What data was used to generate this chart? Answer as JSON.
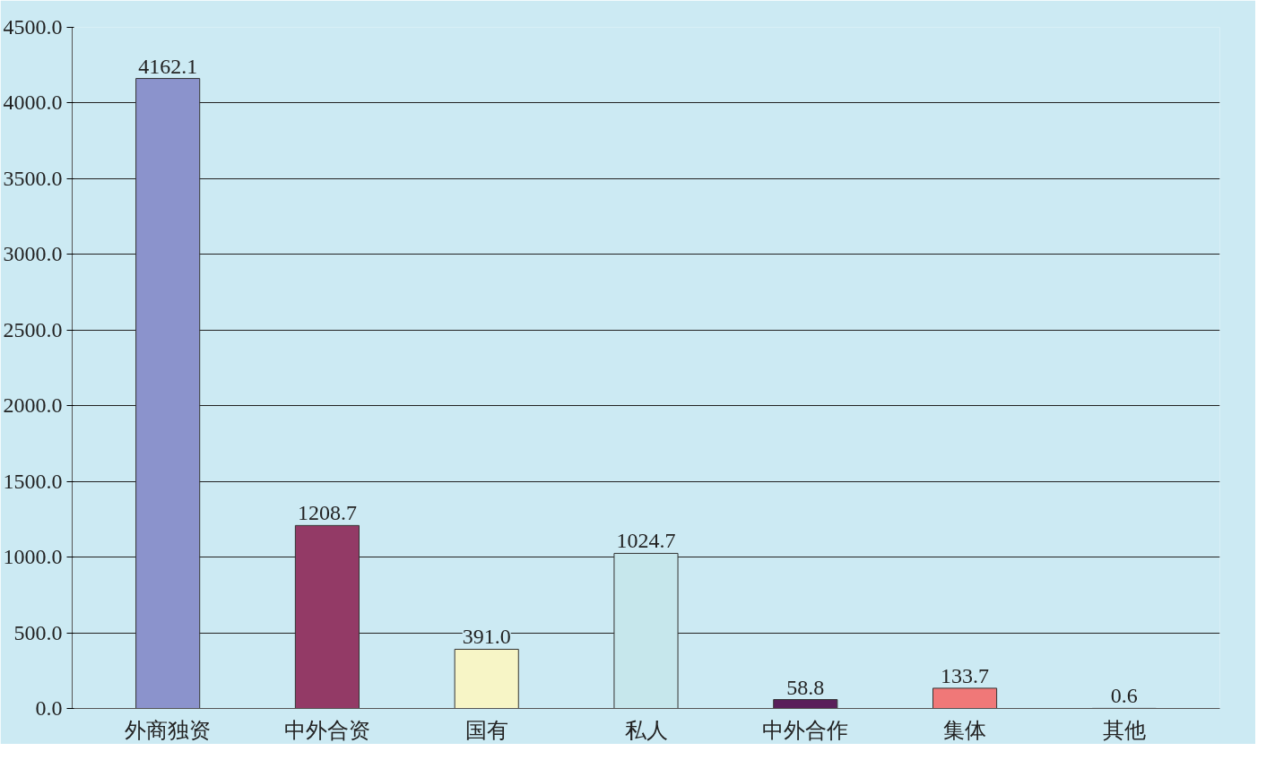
{
  "chart_data": {
    "type": "bar",
    "categories": [
      "外商独资",
      "中外合资",
      "国有",
      "私人",
      "中外合作",
      "集体",
      "其他"
    ],
    "values": [
      4162.1,
      1208.7,
      391.0,
      1024.7,
      58.8,
      133.7,
      0.6
    ],
    "colors": [
      "#8b93cc",
      "#933a66",
      "#f7f5c6",
      "#c6e7ec",
      "#5a1f5a",
      "#f07878",
      "#1f5aa0"
    ],
    "value_labels": [
      "4162.1",
      "1208.7",
      "391.0",
      "1024.7",
      "58.8",
      "133.7",
      "0.6"
    ],
    "ylim": [
      0,
      4500
    ],
    "yticks": [
      {
        "value": 0,
        "label": "0.0"
      },
      {
        "value": 500,
        "label": "500.0"
      },
      {
        "value": 1000,
        "label": "1000.0"
      },
      {
        "value": 1500,
        "label": "1500.0"
      },
      {
        "value": 2000,
        "label": "2000.0"
      },
      {
        "value": 2500,
        "label": "2500.0"
      },
      {
        "value": 3000,
        "label": "3000.0"
      },
      {
        "value": 3500,
        "label": "3500.0"
      },
      {
        "value": 4000,
        "label": "4000.0"
      },
      {
        "value": 4500,
        "label": "4500.0"
      }
    ],
    "grid": "y"
  }
}
